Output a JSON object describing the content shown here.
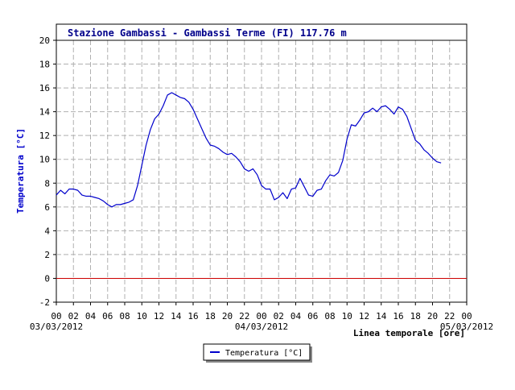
{
  "chart_data": {
    "type": "line",
    "title": "Stazione Gambassi - Gambassi Terme (FI) 117.76 m",
    "ylabel": "Temperatura [°C]",
    "xlabel": "Linea temporale [ore]",
    "ylim": [
      -2,
      20
    ],
    "yticks": [
      "20",
      "18",
      "16",
      "14",
      "12",
      "10",
      "8",
      "6",
      "4",
      "2",
      "0",
      "-2"
    ],
    "xticks": [
      "00",
      "02",
      "04",
      "06",
      "08",
      "10",
      "12",
      "14",
      "16",
      "18",
      "20",
      "22",
      "00",
      "02",
      "04",
      "06",
      "08",
      "10",
      "12",
      "14",
      "16",
      "18",
      "20",
      "22",
      "00"
    ],
    "date_labels": [
      "03/03/2012",
      "04/03/2012",
      "05/03/2012"
    ],
    "grid": true,
    "zero_line_color": "#cc0000",
    "series_color": "#0000cc",
    "legend_position": "bottom-center",
    "series": [
      {
        "name": "Temperatura [°C]",
        "x": [
          0,
          0.5,
          1,
          1.5,
          2,
          2.5,
          3,
          3.5,
          4,
          4.5,
          5,
          5.5,
          6,
          6.5,
          7,
          7.5,
          8,
          8.5,
          9,
          9.5,
          10,
          10.5,
          11,
          11.5,
          12,
          12.5,
          13,
          13.5,
          14,
          14.5,
          15,
          15.5,
          16,
          16.5,
          17,
          17.5,
          18,
          18.5,
          19,
          19.5,
          20,
          20.5,
          21,
          21.5,
          22,
          22.5,
          23,
          23.5,
          24,
          24.5,
          25,
          25.5,
          26,
          26.5,
          27,
          27.5,
          28,
          28.5,
          29,
          29.5,
          30,
          30.5,
          31,
          31.5,
          32,
          32.5,
          33,
          33.5,
          34,
          34.5,
          35,
          35.5,
          36,
          36.5,
          37,
          37.5,
          38,
          38.5,
          39,
          39.5,
          40,
          40.5,
          41,
          41.5,
          42,
          42.5,
          43,
          43.5,
          44,
          44.5,
          45
        ],
        "values": [
          7.0,
          7.4,
          7.1,
          7.5,
          7.5,
          7.4,
          7.0,
          6.9,
          6.9,
          6.8,
          6.7,
          6.5,
          6.2,
          6.0,
          6.2,
          6.2,
          6.3,
          6.4,
          6.6,
          7.8,
          9.5,
          11.2,
          12.5,
          13.4,
          13.8,
          14.5,
          15.4,
          15.6,
          15.4,
          15.2,
          15.1,
          14.8,
          14.2,
          13.4,
          12.6,
          11.8,
          11.2,
          11.1,
          10.9,
          10.6,
          10.4,
          10.5,
          10.2,
          9.8,
          9.2,
          9.0,
          9.2,
          8.7,
          7.8,
          7.5,
          7.5,
          6.6,
          6.8,
          7.2,
          6.7,
          7.5,
          7.6,
          8.4,
          7.7,
          7.0,
          6.9,
          7.4,
          7.5,
          8.2,
          8.7,
          8.6,
          8.9,
          9.9,
          11.7,
          12.9,
          12.8,
          13.3,
          13.9,
          14.0,
          14.3,
          14.0,
          14.4,
          14.5,
          14.2,
          13.8,
          14.4,
          14.2,
          13.6,
          12.6,
          11.6,
          11.3,
          10.8,
          10.5,
          10.1,
          9.8,
          9.7
        ]
      }
    ]
  }
}
